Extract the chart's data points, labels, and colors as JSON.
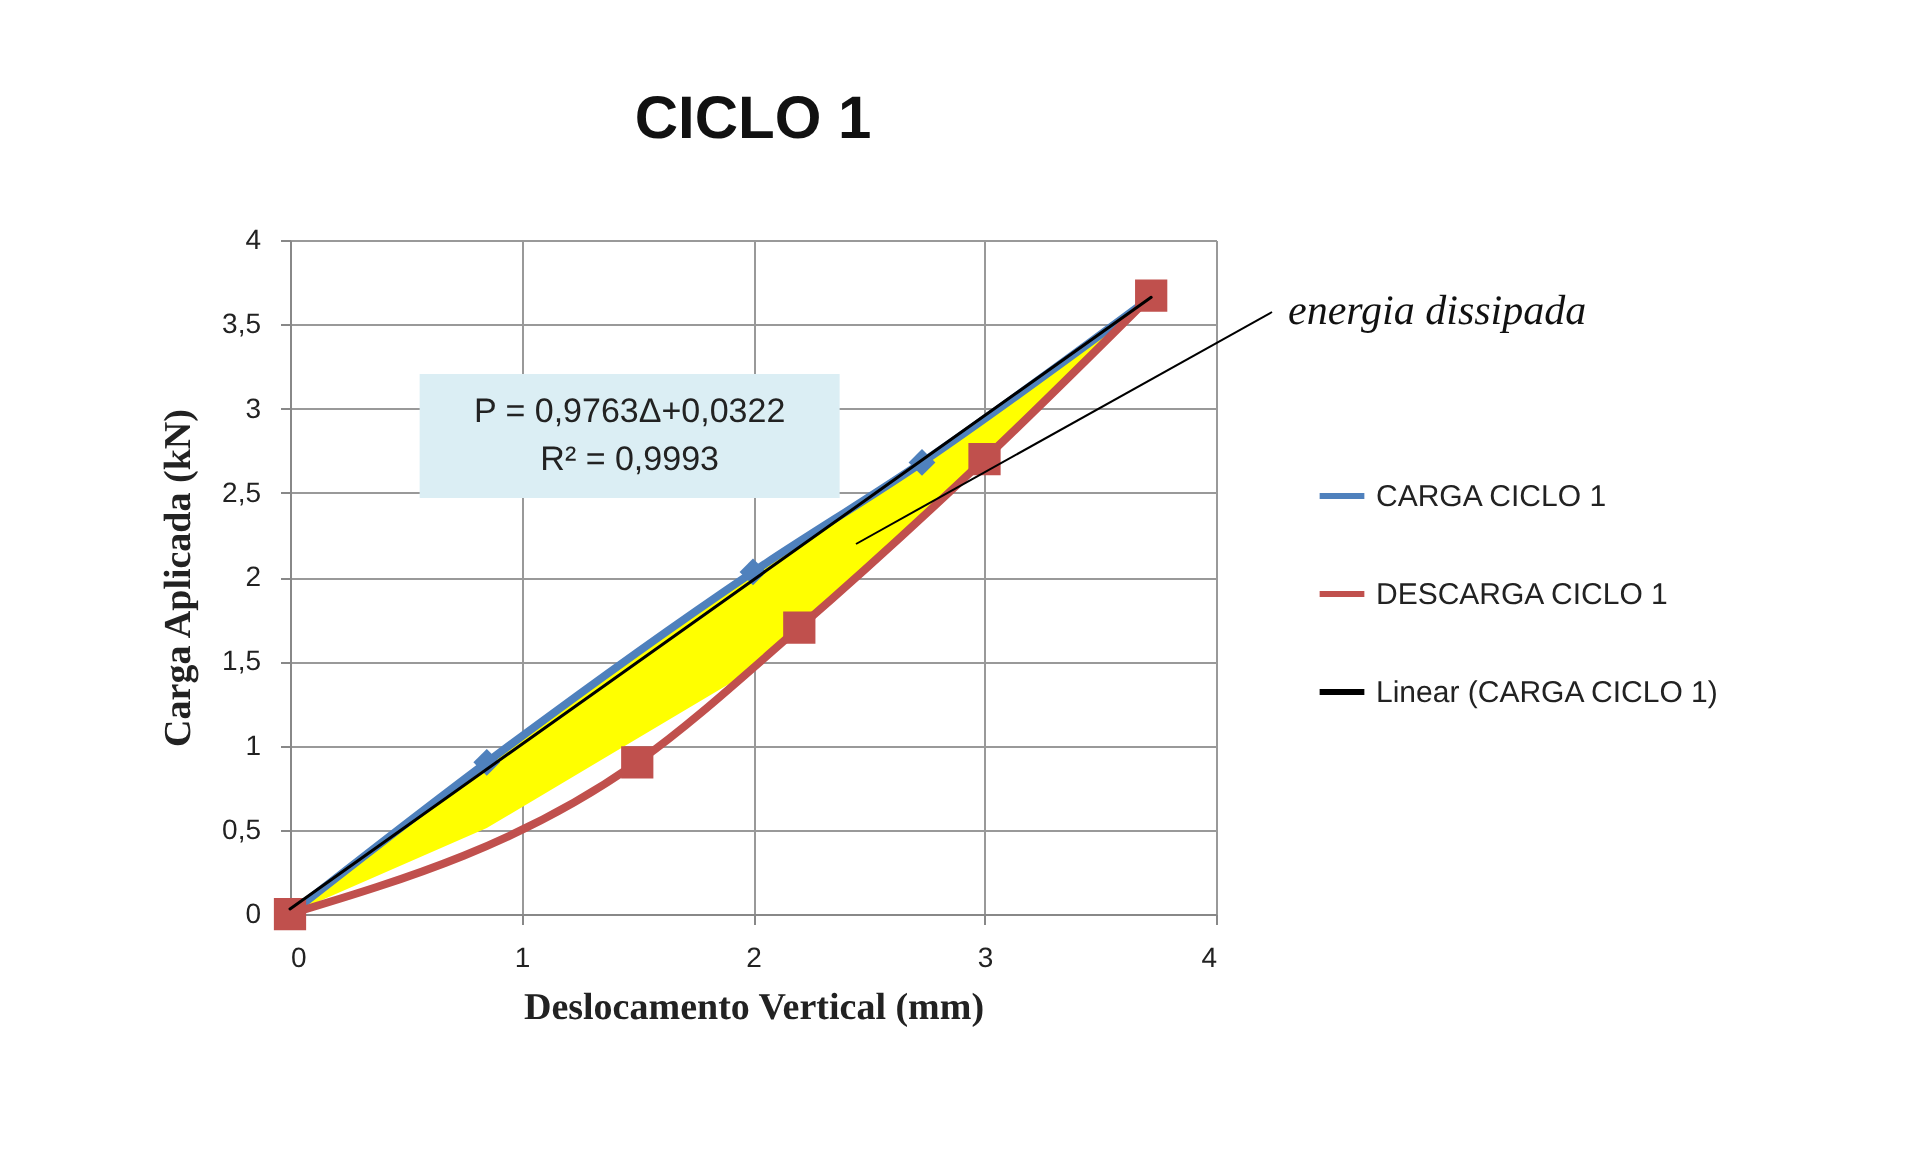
{
  "chart_data": {
    "type": "line",
    "title": "CICLO 1",
    "xlabel": "Deslocamento Vertical (mm)",
    "ylabel": "Carga Aplicada  (kN)",
    "xlim": [
      0,
      4
    ],
    "xticks": [
      0,
      1,
      2,
      3,
      4
    ],
    "ylim": [
      0,
      4
    ],
    "yticks": [
      0,
      {
        "value": 0.5,
        "label": "0,5"
      },
      1,
      {
        "value": 1.5,
        "label": "1,5"
      },
      2,
      {
        "value": 2.5,
        "label": "2,5"
      },
      3,
      {
        "value": 3.5,
        "label": "3,5"
      },
      4
    ],
    "grid": true,
    "legend": "right",
    "series": [
      {
        "name": "CARGA CICLO 1",
        "color": "#4f81bd",
        "marker": "diamond",
        "x": [
          0,
          0.85,
          2.0,
          2.73,
          3.72
        ],
        "values": [
          0,
          0.9,
          2.03,
          2.68,
          3.66
        ],
        "lower": [
          0,
          0.51,
          1.45,
          2.36,
          3.66
        ],
        "upper": [
          0,
          0.9,
          2.03,
          2.68,
          3.66
        ]
      },
      {
        "name": "DESCARGA CICLO 1",
        "color": "#c0504d",
        "marker": "square",
        "x": [
          0,
          1.5,
          2.2,
          3.0,
          3.72
        ],
        "values": [
          0,
          0.9,
          1.7,
          2.7,
          3.67
        ]
      },
      {
        "name": "Linear (CARGA CICLO 1)",
        "color": "#000000",
        "marker": "none",
        "x": [
          0,
          3.72
        ],
        "values": [
          0.03,
          3.66
        ]
      }
    ],
    "annotations": [
      "P = 0,9763Δ+0,0322",
      "R² = 0,9993",
      "energia dissipada"
    ]
  }
}
